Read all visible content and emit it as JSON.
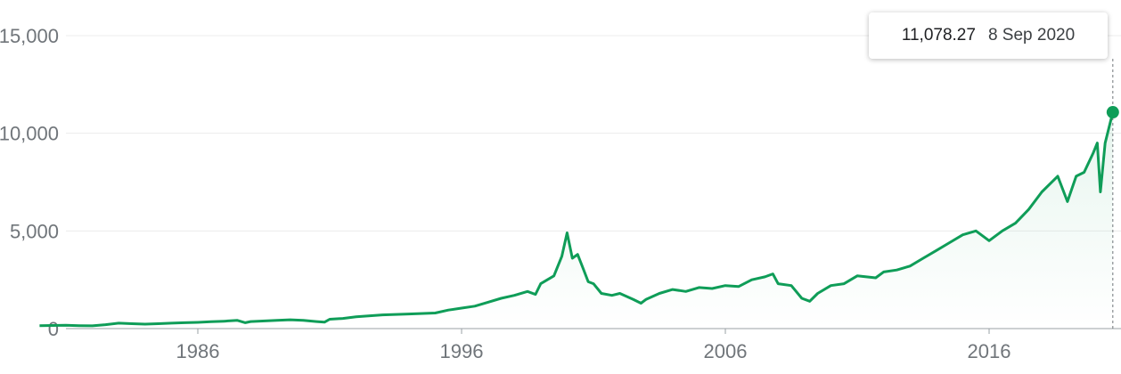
{
  "chart_data": {
    "type": "line",
    "title": "",
    "xlabel": "",
    "ylabel": "",
    "xlim": [
      1978.5,
      2021.0
    ],
    "ylim": [
      0,
      15000
    ],
    "grid": true,
    "x_ticks": [
      "1986",
      "1996",
      "2006",
      "2016"
    ],
    "y_ticks": [
      "0",
      "5,000",
      "10,000",
      "15,000"
    ],
    "colors": {
      "line": "#0f9d58",
      "grid": "#ececec",
      "axis": "#9aa0a6",
      "tick_text": "#70757a"
    },
    "tooltip": {
      "value": "11,078.27",
      "date": "8 Sep 2020"
    },
    "highlight_point": {
      "x": 2020.69,
      "y": 11078.27
    },
    "series": [
      {
        "x": [
          1980.0,
          1980.5,
          1981.0,
          1981.5,
          1982.0,
          1982.5,
          1983.0,
          1983.5,
          1984.0,
          1984.5,
          1985.0,
          1985.5,
          1986.0,
          1986.5,
          1987.0,
          1987.5,
          1987.8,
          1988.0,
          1989.0,
          1989.5,
          1990.0,
          1990.5,
          1990.8,
          1991.0,
          1991.5,
          1992.0,
          1993.0,
          1994.0,
          1995.0,
          1995.5,
          1996.0,
          1996.5,
          1997.0,
          1997.5,
          1998.0,
          1998.5,
          1998.8,
          1999.0,
          1999.5,
          1999.8,
          2000.0,
          2000.2,
          2000.4,
          2000.6,
          2000.8,
          2001.0,
          2001.3,
          2001.7,
          2002.0,
          2002.5,
          2002.8,
          2003.0,
          2003.5,
          2004.0,
          2004.5,
          2005.0,
          2005.5,
          2006.0,
          2006.5,
          2007.0,
          2007.5,
          2007.8,
          2008.0,
          2008.5,
          2008.9,
          2009.2,
          2009.5,
          2010.0,
          2010.5,
          2011.0,
          2011.7,
          2012.0,
          2012.5,
          2013.0,
          2013.5,
          2014.0,
          2014.5,
          2015.0,
          2015.5,
          2016.0,
          2016.5,
          2017.0,
          2017.5,
          2018.0,
          2018.6,
          2018.97,
          2019.3,
          2019.6,
          2019.95,
          2020.1,
          2020.22,
          2020.4,
          2020.6,
          2020.69
        ],
        "y": [
          150,
          160,
          170,
          150,
          140,
          200,
          280,
          250,
          230,
          250,
          280,
          300,
          320,
          350,
          380,
          420,
          300,
          360,
          420,
          450,
          420,
          360,
          330,
          480,
          520,
          600,
          700,
          750,
          800,
          950,
          1050,
          1150,
          1350,
          1550,
          1700,
          1900,
          1750,
          2300,
          2700,
          3700,
          4900,
          3600,
          3800,
          3100,
          2400,
          2300,
          1800,
          1700,
          1800,
          1500,
          1300,
          1500,
          1800,
          2000,
          1900,
          2100,
          2050,
          2200,
          2150,
          2500,
          2650,
          2800,
          2300,
          2200,
          1550,
          1400,
          1800,
          2200,
          2300,
          2700,
          2600,
          2900,
          3000,
          3200,
          3600,
          4000,
          4400,
          4800,
          5000,
          4500,
          5000,
          5400,
          6100,
          7000,
          7800,
          6500,
          7800,
          8000,
          9000,
          9500,
          7000,
          9500,
          10600,
          11078.27
        ]
      }
    ]
  }
}
